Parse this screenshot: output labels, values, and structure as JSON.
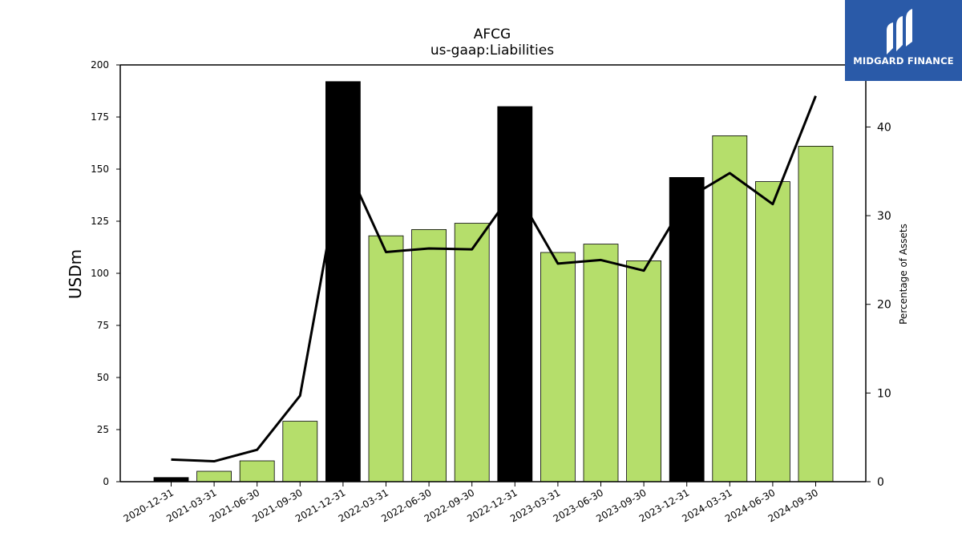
{
  "chart_data": {
    "type": "bar",
    "title": "AFCG",
    "subtitle": "us-gaap:Liabilities",
    "ylabel": "USDm",
    "y2label": "Percentage of Assets",
    "ylim": [
      0,
      200
    ],
    "y2lim": [
      0,
      47
    ],
    "yticks": [
      0,
      25,
      50,
      75,
      100,
      125,
      150,
      175,
      200
    ],
    "y2ticks": [
      0,
      10,
      20,
      30,
      40
    ],
    "categories": [
      "2020-12-31",
      "2021-03-31",
      "2021-06-30",
      "2021-09-30",
      "2021-12-31",
      "2022-03-31",
      "2022-06-30",
      "2022-09-30",
      "2022-12-31",
      "2023-03-31",
      "2023-06-30",
      "2023-09-30",
      "2023-12-31",
      "2024-03-31",
      "2024-06-30",
      "2024-09-30"
    ],
    "series": [
      {
        "type": "bar",
        "values": [
          2,
          5,
          10,
          29,
          192,
          118,
          121,
          124,
          180,
          110,
          114,
          106,
          146,
          166,
          144,
          161
        ],
        "highlight": [
          true,
          false,
          false,
          false,
          true,
          false,
          false,
          false,
          true,
          false,
          false,
          false,
          true,
          false,
          false,
          false
        ]
      },
      {
        "type": "line",
        "axis": "right",
        "values": [
          2.5,
          2.3,
          3.6,
          9.7,
          36.5,
          25.9,
          26.3,
          26.2,
          33.0,
          24.6,
          25.0,
          23.8,
          31.9,
          34.8,
          31.3,
          43.5
        ]
      }
    ],
    "colors": {
      "bar": "#b5de6b",
      "highlight_bar": "#000000",
      "line": "#000000"
    }
  },
  "logo": {
    "text": "MIDGARD FINANCE",
    "color": "#2a5aa8"
  }
}
